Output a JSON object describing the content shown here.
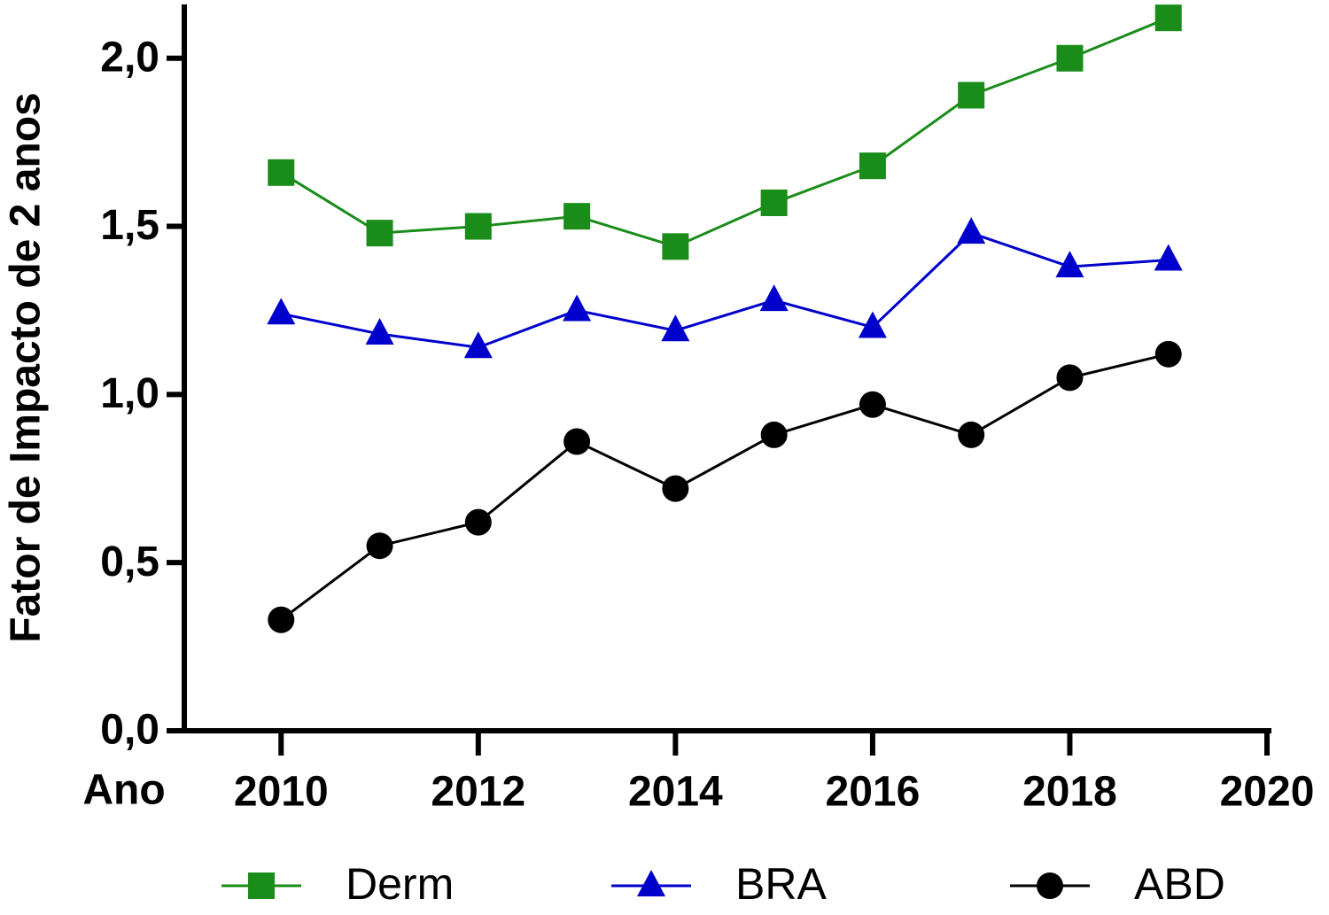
{
  "chart_data": {
    "type": "line",
    "x_label": "Ano",
    "y_label": "Fator de Impacto de 2 anos",
    "x": [
      2010,
      2011,
      2012,
      2013,
      2014,
      2015,
      2016,
      2017,
      2018,
      2019
    ],
    "series": [
      {
        "name": "Derm",
        "color": "#1a8c1a",
        "marker": "square",
        "values": [
          1.66,
          1.48,
          1.5,
          1.53,
          1.44,
          1.57,
          1.68,
          1.89,
          2.0,
          2.12
        ]
      },
      {
        "name": "BRA",
        "color": "#0000cc",
        "marker": "triangle",
        "values": [
          1.24,
          1.18,
          1.14,
          1.25,
          1.19,
          1.28,
          1.2,
          1.48,
          1.38,
          1.4
        ]
      },
      {
        "name": "ABD",
        "color": "#000000",
        "marker": "circle",
        "values": [
          0.33,
          0.55,
          0.62,
          0.86,
          0.72,
          0.88,
          0.97,
          0.88,
          1.05,
          1.12
        ]
      }
    ],
    "xlim": [
      2009,
      2020
    ],
    "xticks": [
      2010,
      2012,
      2014,
      2016,
      2018,
      2020
    ],
    "ylim": [
      0,
      2.16
    ],
    "yticks": [
      {
        "value": 0,
        "label": "0,0"
      },
      {
        "value": 0.5,
        "label": "0,5"
      },
      {
        "value": 1,
        "label": "1,0"
      },
      {
        "value": 1.5,
        "label": "1,5"
      },
      {
        "value": 2,
        "label": "2,0"
      }
    ],
    "legend": "bottom"
  }
}
